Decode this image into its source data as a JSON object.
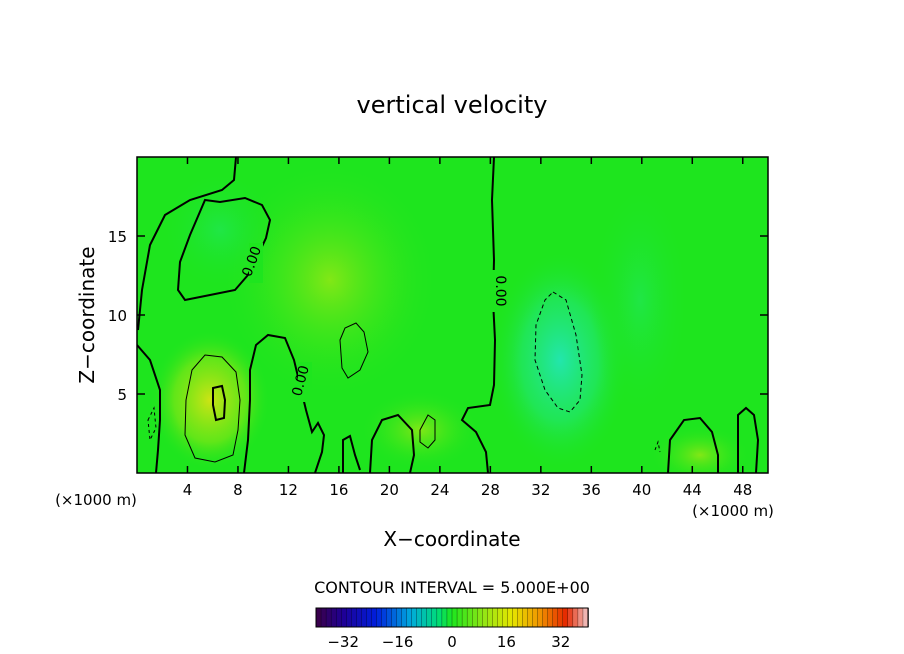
{
  "chart_data": {
    "type": "heatmap",
    "title": "vertical velocity",
    "xlabel": "X−coordinate",
    "ylabel": "Z−coordinate",
    "x_unit_left": "(×1000 m)",
    "x_unit_right": "(×1000 m)",
    "xlim": [
      0,
      50
    ],
    "ylim": [
      0,
      20
    ],
    "x_ticks": [
      4,
      8,
      12,
      16,
      20,
      24,
      28,
      32,
      36,
      40,
      44,
      48
    ],
    "y_ticks": [
      5,
      10,
      15
    ],
    "x_tick_labels": [
      "4",
      "8",
      "12",
      "16",
      "20",
      "24",
      "28",
      "32",
      "36",
      "40",
      "44",
      "48"
    ],
    "y_tick_labels": [
      "5",
      "10",
      "15"
    ],
    "contour_labels": [
      "0.00",
      "0.00",
      "0.00"
    ],
    "contour_interval_text": "CONTOUR INTERVAL =  5.000E+00",
    "colorbar": {
      "min": -40,
      "max": 40,
      "tick_values": [
        -32,
        -16,
        0,
        16,
        32
      ],
      "tick_labels": [
        "−32",
        "−16",
        "0",
        "16",
        "32"
      ]
    },
    "colors": {
      "background_field": "#1ee51e",
      "updraft": "#c8dc14",
      "downdraft": "#28e6a0",
      "contour": "#000000"
    },
    "grid": false
  }
}
